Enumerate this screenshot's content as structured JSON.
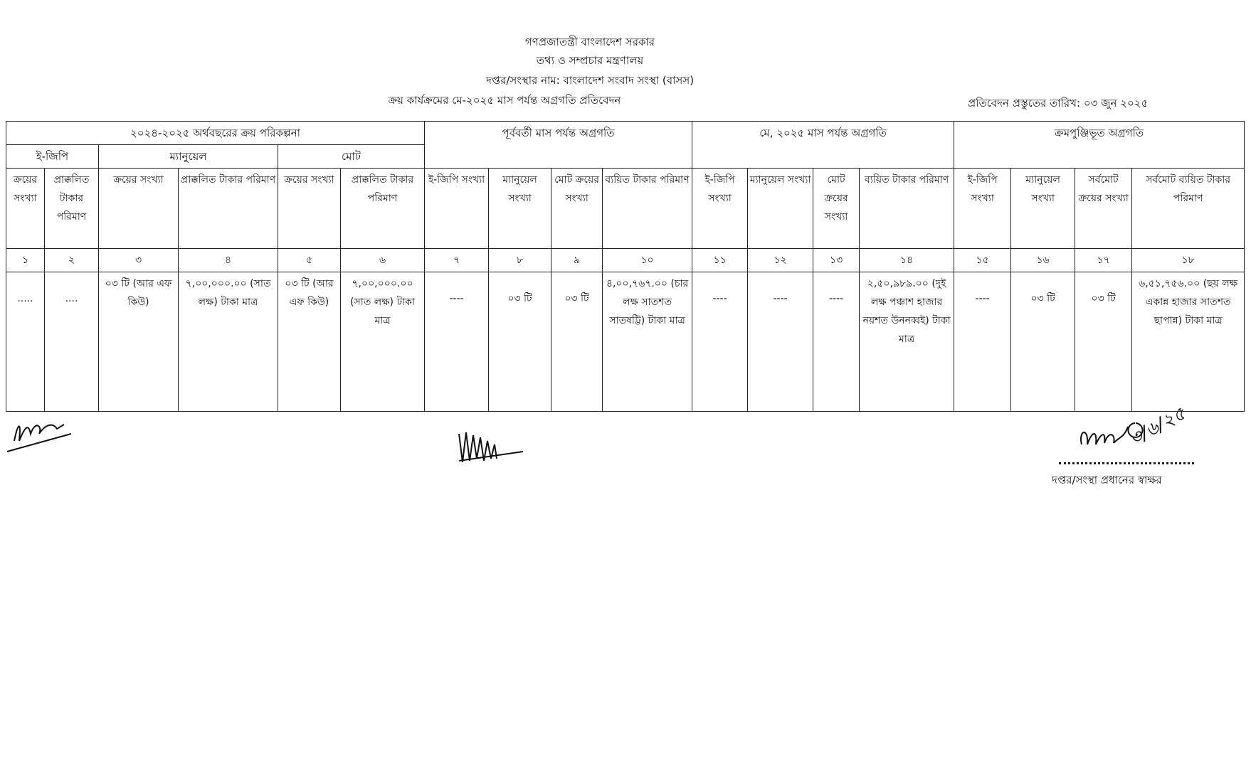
{
  "header": {
    "line1": "গণপ্রজাতন্ত্রী বাংলাদেশ সরকার",
    "line2": "তথ্য ও সম্প্রচার মন্ত্রণালয়",
    "line3": "দপ্তর/সংস্থার নাম: বাংলাদেশ সংবাদ সংস্থা (বাসস)",
    "line4": "ক্রয় কার্যক্রমের মে-২০২৫ মাস পর্যন্ত অগ্রগতি প্রতিবেদন",
    "report_date": "প্রতিবেদন প্রস্তুতের তারিখ: ০৩ জুন ২০২৫"
  },
  "table": {
    "groups": [
      "২০২৪-২০২৫ অর্থবছরের ক্রয় পরিকল্পনা",
      "পূর্ববর্তী মাস পর্যন্ত অগ্রগতি",
      "মে, ২০২৫ মাস পর্যন্ত অগ্রগতি",
      "ক্রমপুঞ্জিভূত অগ্রগতি"
    ],
    "subgroups": [
      "ই-জিপি",
      "ম্যানুয়েল",
      "মোট"
    ],
    "columns": [
      "ক্রয়ের সংখ্যা",
      "প্রাক্কলিত টাকার পরিমাণ",
      "ক্রয়ের সংখ্যা",
      "প্রাক্কলিত টাকার পরিমাণ",
      "ক্রয়ের সংখ্যা",
      "প্রাক্কলিত টাকার পরিমাণ",
      "ই-জিপি সংখ্যা",
      "ম্যানুয়েল সংখ্যা",
      "মোট ক্রয়ের সংখ্যা",
      "ব্যয়িত টাকার পরিমাণ",
      "ই-জিপি সংখ্যা",
      "ম্যানুয়েল সংখ্যা",
      "মোট ক্রয়ের সংখ্যা",
      "ব্যয়িত টাকার পরিমাণ",
      "ই-জিপি সংখ্যা",
      "ম্যানুয়েল সংখ্যা",
      "সর্বমোট ক্রয়ের সংখ্যা",
      "সর্বমোট ব্যয়িত টাকার পরিমাণ"
    ],
    "numbers": [
      "১",
      "২",
      "৩",
      "৪",
      "৫",
      "৬",
      "৭",
      "৮",
      "৯",
      "১০",
      "১১",
      "১২",
      "১৩",
      "১৪",
      "১৫",
      "১৬",
      "১৭",
      "১৮"
    ],
    "row": [
      ".....",
      "....",
      "০৩ টি (আর এফ কিউ)",
      "৭,০০,০০০.০০ (সাত লক্ষ) টাকা মাত্র",
      "০৩ টি (আর এফ কিউ)",
      "৭,০০,০০০.০০ (সাত লক্ষ) টাকা মাত্র",
      "----",
      "০৩ টি",
      "০৩ টি",
      "৪,০০,৭৬৭.০০ (চার লক্ষ সাতশত সাতষট্টি) টাকা মাত্র",
      "----",
      "----",
      "----",
      "২,৫০,৯৮৯.০০ (দুই লক্ষ পঞ্চাশ হাজার নয়শত উননব্বই) টাকা মাত্র",
      "----",
      "০৩ টি",
      "০৩ টি",
      "৬,৫১,৭৫৬.০০ (ছয় লক্ষ একান্ন হাজার সাতশত ছাপান্ন) টাকা মাত্র"
    ]
  },
  "signature": {
    "label": "দপ্তর/সংস্থা প্রধানের স্বাক্ষর",
    "handwritten_date": "৩/৬/২৫"
  }
}
